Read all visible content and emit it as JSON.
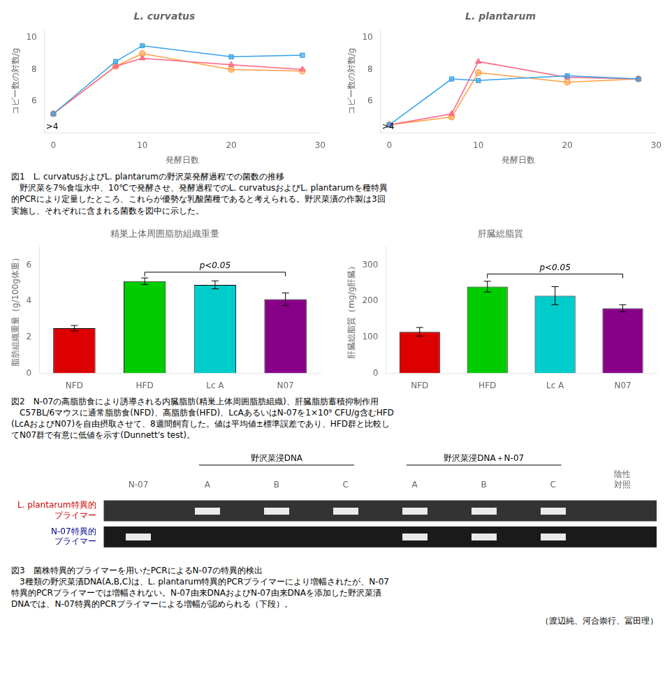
{
  "chart_data": [
    {
      "type": "line",
      "title": "L. curvatus",
      "x": [
        0,
        7,
        10,
        20,
        28
      ],
      "series": [
        {
          "values": [
            5.2,
            8.5,
            9.5,
            8.8,
            8.9
          ],
          "marker": "square"
        },
        {
          "values": [
            5.2,
            8.2,
            8.7,
            8.3,
            8.0
          ],
          "marker": "triangle"
        },
        {
          "values": [
            5.2,
            8.2,
            9.0,
            8.0,
            7.9
          ],
          "marker": "circle"
        }
      ],
      "xlabel": "発酵日数",
      "ylabel": "コピー数の対数/g",
      "xlim": [
        -1,
        30
      ],
      "ylim": [
        4,
        10.5
      ],
      "xticks": [
        0,
        10,
        20,
        30
      ],
      "yticks": [
        6,
        8,
        10
      ],
      "annotations": [
        {
          "text": ">4",
          "x": -1,
          "y": 4.35
        }
      ],
      "grid": false
    },
    {
      "type": "line",
      "title": "L. plantarum",
      "x": [
        0,
        7,
        10,
        20,
        28
      ],
      "series": [
        {
          "values": [
            4.5,
            7.4,
            7.3,
            7.6,
            7.4
          ],
          "marker": "square"
        },
        {
          "values": [
            4.5,
            5.2,
            8.5,
            7.5,
            7.4
          ],
          "marker": "triangle"
        },
        {
          "values": [
            4.5,
            5.0,
            7.8,
            7.2,
            7.4
          ],
          "marker": "circle"
        }
      ],
      "xlabel": "発酵日数",
      "ylabel": "コピー数の対数/g",
      "xlim": [
        -1,
        30
      ],
      "ylim": [
        4,
        10.5
      ],
      "xticks": [
        0,
        10,
        20,
        30
      ],
      "yticks": [
        6,
        8,
        10
      ],
      "annotations": [
        {
          "text": ">4",
          "x": -1,
          "y": 4.35
        }
      ],
      "grid": false
    },
    {
      "type": "bar",
      "title": "精巣上体周囲脂肪組織重量",
      "categories": [
        "NFD",
        "HFD",
        "Lc A",
        "N07"
      ],
      "values": [
        2.5,
        5.1,
        4.9,
        4.1
      ],
      "errors": [
        0.15,
        0.18,
        0.22,
        0.35
      ],
      "colors": [
        "#dd0000",
        "#00cc00",
        "#00cccc",
        "#880088"
      ],
      "ylabel": "脂肪組織重量（g/100g体重）",
      "ylim": [
        0,
        7
      ],
      "yticks": [
        0,
        2,
        4,
        6
      ],
      "annotations": [
        {
          "text": "p<0.05",
          "x": [
            "HFD",
            "N07"
          ],
          "y": 5.6
        }
      ],
      "grid": false
    },
    {
      "type": "bar",
      "title": "肝臓総脂質",
      "categories": [
        "NFD",
        "HFD",
        "Lc A",
        "N07"
      ],
      "values": [
        115,
        240,
        215,
        180
      ],
      "errors": [
        12,
        15,
        25,
        10
      ],
      "colors": [
        "#dd0000",
        "#00cc00",
        "#00cccc",
        "#880088"
      ],
      "ylabel": "肝臓総脂質（mg/g肝臓）",
      "ylim": [
        0,
        350
      ],
      "yticks": [
        0,
        100,
        200,
        300
      ],
      "annotations": [
        {
          "text": "p<0.05",
          "x": [
            "HFD",
            "N07"
          ],
          "y": 275
        }
      ],
      "grid": false
    },
    {
      "type": "gel",
      "categories": [
        "N-07",
        "A",
        "B",
        "C",
        "A",
        "B",
        "C",
        "陰性\n対照"
      ],
      "series": [
        {
          "name": "L. plantarum特異的\nプライマー",
          "color": "#cc0000",
          "values": [
            0,
            1,
            1,
            1,
            1,
            1,
            1,
            0
          ]
        },
        {
          "name": "N-07特異的\nプライマー",
          "color": "#000088",
          "values": [
            1,
            0,
            0,
            0,
            1,
            1,
            1,
            0
          ]
        }
      ],
      "annotations": [
        {
          "text": "野沢菜浸DNA",
          "x": [
            1,
            3
          ]
        },
        {
          "text": "野沢菜浸DNA＋N-07",
          "x": [
            4,
            6
          ]
        }
      ],
      "grid": false
    }
  ],
  "captions": [
    "図1　L. curvatusおよびL. plantarumの野沢菜発酵過程での菌数の推移\n　野沢菜を7%食塩水中、10℃で発酵させ、発酵過程でのL. curvatusおよびL. plantarumを種特異\n的PCRにより定量したところ、これらが優勢な乳酸菌種であると考えられる。野沢菜漬の作製は3回\n実施し、それぞれに含まれる菌数を図中に示した。",
    "図2　N-07の高脂肪食により誘導される内臓脂肪(精巣上体周囲脂肪組織)、肝臓脂肪蓄積抑制作用\n　C57BL/6マウスに通常脂肪食(NFD)、高脂肪食(HFD)、LcAあるいはN-07を1×10⁹ CFU/g含むHFD\n(LcAおよびN07)を自由摂取させて、8週間飼育した。値は平均値±標準誤差であり、HFD群と比較し\nてN07群で有意に低値を示す(Dunnett's test)。",
    "図3　菌株特異的プライマーを用いたPCRによるN-07の特異的検出\n　3種類の野沢菜漬DNA(A,B,C)は、L. plantarum特異的PCRプライマーにより増幅されたが、N-07\n特異的PCRプライマーでは増幅されない。N-07由来DNAおよびN-07由来DNAを添加した野沢菜漬\nDNAでは、N-07特異的PCRプライマーによる増幅が認められる（下段）。"
  ],
  "footer": "（渡辺純、河合崇行、冨田理）"
}
